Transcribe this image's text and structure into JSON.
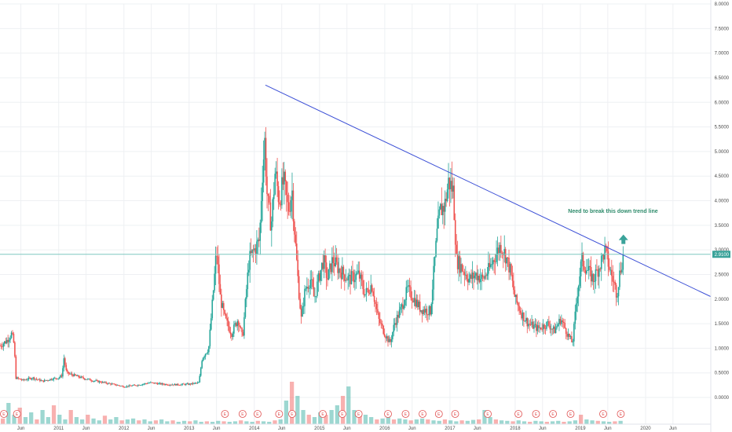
{
  "chart_data": {
    "type": "candlestick",
    "y_axis": {
      "position": "right",
      "ticks": [
        "8.0000",
        "7.5000",
        "7.0000",
        "6.5000",
        "6.0000",
        "5.5000",
        "5.0000",
        "4.5000",
        "4.0000",
        "3.5000",
        "3.0000",
        "2.5000",
        "2.0000",
        "1.5000",
        "1.0000",
        "0.5000",
        "0.0000"
      ],
      "ylim": [
        0,
        8
      ]
    },
    "x_axis": {
      "ticks": [
        {
          "label": "Jun",
          "t": 2010.42
        },
        {
          "label": "2011",
          "t": 2011.0
        },
        {
          "label": "Jun",
          "t": 2011.42
        },
        {
          "label": "2012",
          "t": 2012.0
        },
        {
          "label": "Jun",
          "t": 2012.42
        },
        {
          "label": "2013",
          "t": 2013.0
        },
        {
          "label": "Jun",
          "t": 2013.42
        },
        {
          "label": "2014",
          "t": 2014.0
        },
        {
          "label": "Jun",
          "t": 2014.42
        },
        {
          "label": "2015",
          "t": 2015.0
        },
        {
          "label": "Jun",
          "t": 2015.42
        },
        {
          "label": "2016",
          "t": 2016.0
        },
        {
          "label": "Jun",
          "t": 2016.42
        },
        {
          "label": "2017",
          "t": 2017.0
        },
        {
          "label": "Jun",
          "t": 2017.42
        },
        {
          "label": "2018",
          "t": 2018.0
        },
        {
          "label": "Jun",
          "t": 2018.42
        },
        {
          "label": "2019",
          "t": 2019.0
        },
        {
          "label": "Jun",
          "t": 2019.42
        },
        {
          "label": "2020",
          "t": 2020.0
        },
        {
          "label": "Jun",
          "t": 2020.42
        }
      ],
      "xlim": [
        2010.1,
        2021.0
      ]
    },
    "price_series": [
      [
        2010.1,
        1.05
      ],
      [
        2010.2,
        1.15
      ],
      [
        2010.28,
        1.3
      ],
      [
        2010.32,
        1.05
      ],
      [
        2010.34,
        0.4
      ],
      [
        2010.45,
        0.35
      ],
      [
        2010.6,
        0.4
      ],
      [
        2010.75,
        0.33
      ],
      [
        2010.9,
        0.38
      ],
      [
        2011.0,
        0.4
      ],
      [
        2011.05,
        0.45
      ],
      [
        2011.08,
        0.8
      ],
      [
        2011.12,
        0.5
      ],
      [
        2011.3,
        0.42
      ],
      [
        2011.5,
        0.35
      ],
      [
        2011.7,
        0.3
      ],
      [
        2011.9,
        0.25
      ],
      [
        2012.0,
        0.22
      ],
      [
        2012.2,
        0.25
      ],
      [
        2012.4,
        0.3
      ],
      [
        2012.6,
        0.27
      ],
      [
        2012.8,
        0.26
      ],
      [
        2013.0,
        0.27
      ],
      [
        2013.15,
        0.3
      ],
      [
        2013.2,
        0.8
      ],
      [
        2013.3,
        1.0
      ],
      [
        2013.38,
        2.3
      ],
      [
        2013.42,
        3.0
      ],
      [
        2013.48,
        2.0
      ],
      [
        2013.55,
        1.6
      ],
      [
        2013.65,
        1.3
      ],
      [
        2013.75,
        1.6
      ],
      [
        2013.82,
        1.2
      ],
      [
        2013.88,
        2.2
      ],
      [
        2013.92,
        2.8
      ],
      [
        2014.0,
        3.0
      ],
      [
        2014.08,
        3.2
      ],
      [
        2014.12,
        4.5
      ],
      [
        2014.16,
        5.2
      ],
      [
        2014.2,
        4.0
      ],
      [
        2014.26,
        3.5
      ],
      [
        2014.32,
        4.6
      ],
      [
        2014.38,
        4.0
      ],
      [
        2014.45,
        4.4
      ],
      [
        2014.52,
        3.8
      ],
      [
        2014.58,
        4.2
      ],
      [
        2014.62,
        3.3
      ],
      [
        2014.68,
        2.2
      ],
      [
        2014.72,
        1.6
      ],
      [
        2014.78,
        2.2
      ],
      [
        2014.86,
        2.4
      ],
      [
        2014.92,
        2.0
      ],
      [
        2015.0,
        2.5
      ],
      [
        2015.06,
        2.8
      ],
      [
        2015.12,
        2.4
      ],
      [
        2015.2,
        2.8
      ],
      [
        2015.3,
        2.6
      ],
      [
        2015.45,
        2.4
      ],
      [
        2015.6,
        2.5
      ],
      [
        2015.7,
        2.1
      ],
      [
        2015.8,
        2.3
      ],
      [
        2015.9,
        1.6
      ],
      [
        2016.0,
        1.3
      ],
      [
        2016.08,
        1.1
      ],
      [
        2016.15,
        1.5
      ],
      [
        2016.25,
        1.8
      ],
      [
        2016.35,
        2.2
      ],
      [
        2016.45,
        2.0
      ],
      [
        2016.55,
        1.8
      ],
      [
        2016.7,
        1.75
      ],
      [
        2016.8,
        3.3
      ],
      [
        2016.85,
        3.8
      ],
      [
        2016.92,
        3.9
      ],
      [
        2016.98,
        4.4
      ],
      [
        2017.05,
        4.2
      ],
      [
        2017.1,
        2.8
      ],
      [
        2017.2,
        2.6
      ],
      [
        2017.3,
        2.4
      ],
      [
        2017.4,
        2.5
      ],
      [
        2017.5,
        2.4
      ],
      [
        2017.6,
        2.6
      ],
      [
        2017.7,
        2.9
      ],
      [
        2017.78,
        3.1
      ],
      [
        2017.85,
        2.9
      ],
      [
        2017.92,
        2.6
      ],
      [
        2018.0,
        2.0
      ],
      [
        2018.1,
        1.7
      ],
      [
        2018.2,
        1.5
      ],
      [
        2018.35,
        1.4
      ],
      [
        2018.5,
        1.5
      ],
      [
        2018.6,
        1.35
      ],
      [
        2018.7,
        1.6
      ],
      [
        2018.8,
        1.3
      ],
      [
        2018.88,
        1.1
      ],
      [
        2018.95,
        2.1
      ],
      [
        2019.02,
        2.8
      ],
      [
        2019.1,
        2.6
      ],
      [
        2019.2,
        2.4
      ],
      [
        2019.3,
        2.7
      ],
      [
        2019.38,
        3.0
      ],
      [
        2019.45,
        2.6
      ],
      [
        2019.52,
        2.3
      ],
      [
        2019.56,
        2.1
      ],
      [
        2019.6,
        2.5
      ],
      [
        2019.66,
        2.9
      ]
    ],
    "volume_series": [
      0.12,
      0.45,
      0.2,
      0.35,
      0.15,
      0.25,
      0.1,
      0.3,
      0.15,
      0.4,
      0.2,
      0.1,
      0.3,
      0.15,
      0.1,
      0.2,
      0.12,
      0.08,
      0.18,
      0.1,
      0.15,
      0.08,
      0.1,
      0.12,
      0.08,
      0.1,
      0.06,
      0.08,
      0.1,
      0.06,
      0.08,
      0.05,
      0.07,
      0.06,
      0.08,
      0.05,
      0.06,
      0.05,
      0.07,
      0.06,
      0.05,
      0.06,
      0.08,
      0.06,
      0.05,
      0.07,
      0.06,
      0.05,
      0.08,
      0.1,
      0.5,
      0.9,
      0.6,
      0.3,
      0.2,
      0.15,
      0.25,
      0.2,
      0.3,
      0.4,
      0.6,
      0.8,
      0.3,
      0.25,
      0.2,
      0.15,
      0.1,
      0.12,
      0.15,
      0.1,
      0.12,
      0.1,
      0.08,
      0.1,
      0.12,
      0.1,
      0.08,
      0.07,
      0.1,
      0.08,
      0.06,
      0.08,
      0.07,
      0.09,
      0.1,
      0.3,
      0.15,
      0.1,
      0.08,
      0.07,
      0.06,
      0.08,
      0.06,
      0.05,
      0.07,
      0.06,
      0.05,
      0.06,
      0.07,
      0.05,
      0.06,
      0.08,
      0.2,
      0.1,
      0.08,
      0.07,
      0.06,
      0.05,
      0.06,
      0.07
    ],
    "trend_line": {
      "from": [
        2014.17,
        6.35
      ],
      "to": [
        2021.0,
        2.05
      ],
      "color": "#3b4fd6"
    },
    "horizontal_line": {
      "y": 2.91,
      "color": "#7fc8c0"
    },
    "price_label": {
      "text": "2.9100",
      "value": 2.91,
      "color": "#3aa39a"
    },
    "annotation": {
      "text": "Need to break this down trend line",
      "t": 2019.5,
      "y": 3.75,
      "color": "#2e8b6b"
    },
    "up_arrow": {
      "t": 2019.66,
      "y": 3.2,
      "color": "#3aa39a"
    },
    "event_markers": {
      "letter": "E",
      "t": [
        2010.16,
        2010.36,
        2013.55,
        2013.82,
        2014.05,
        2014.38,
        2014.58,
        2015.05,
        2015.35,
        2015.6,
        2016.05,
        2016.32,
        2016.58,
        2016.83,
        2017.08,
        2017.58,
        2018.05,
        2018.32,
        2018.58,
        2018.85,
        2019.35,
        2019.62
      ],
      "color": "#e05050"
    },
    "colors": {
      "up": "#26a69a",
      "down": "#ef5350",
      "grid": "#eef0f3",
      "background": "#ffffff",
      "axis_text": "#4a4a4a"
    }
  }
}
